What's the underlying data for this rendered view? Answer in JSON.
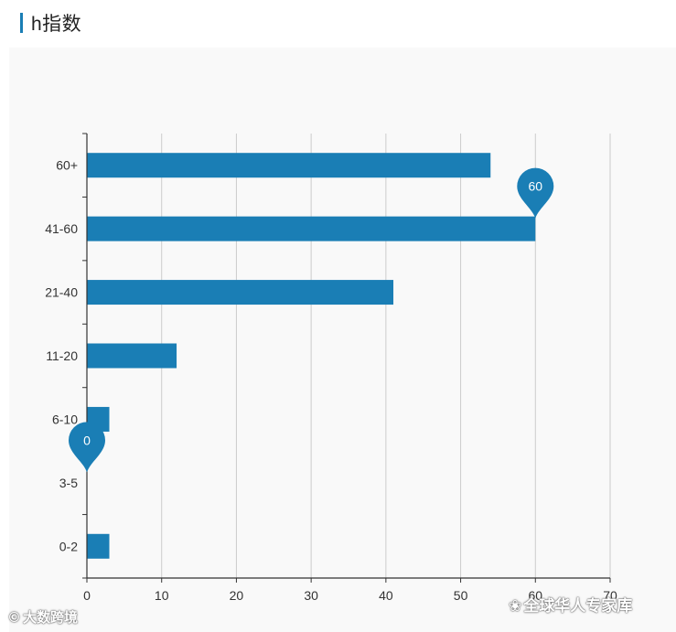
{
  "section": {
    "title": "h指数",
    "accent_color": "#1a7eb5"
  },
  "chart_data": {
    "type": "bar",
    "orientation": "horizontal",
    "categories": [
      "60+",
      "41-60",
      "21-40",
      "11-20",
      "6-10",
      "3-5",
      "0-2"
    ],
    "values": [
      54,
      60,
      41,
      12,
      3,
      0,
      3
    ],
    "xlim": [
      0,
      70
    ],
    "xticks": [
      0,
      10,
      20,
      30,
      40,
      50,
      60,
      70
    ],
    "bar_color": "#1a7eb5",
    "grid": "vertical",
    "markers": [
      {
        "category": "41-60",
        "value": 60,
        "label": "60",
        "type": "max"
      },
      {
        "category": "3-5",
        "value": 0,
        "label": "0",
        "type": "min"
      }
    ]
  },
  "watermarks": {
    "left": "大数跨境",
    "right": "全球华人专家库",
    "left_icon": "logo-icon",
    "right_icon": "wechat-icon"
  }
}
